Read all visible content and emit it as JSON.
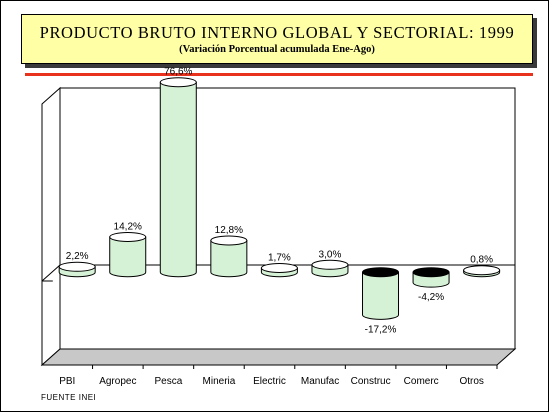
{
  "title": "PRODUCTO BRUTO INTERNO GLOBAL Y SECTORIAL: 1999",
  "subtitle": "(Variación Porcentual acumulada Ene-Ago)",
  "source": "FUENTE INEI",
  "colors": {
    "title_bg": "#ffffa6",
    "rule": "#e8321e",
    "bar_fill": "#d6f2d6",
    "bar_top": "#ffffff",
    "bar_bottom_negative": "#000000",
    "floor": "#c8c8c8"
  },
  "chart_data": {
    "type": "bar",
    "style": "3d-cylinder",
    "categories": [
      "PBI",
      "Agropec",
      "Pesca",
      "Mineria",
      "Electric",
      "Manufac",
      "Construc",
      "Comerc",
      "Otros"
    ],
    "values": [
      2.2,
      14.2,
      76.6,
      12.8,
      1.7,
      3.0,
      -17.2,
      -4.2,
      0.8
    ],
    "data_labels": [
      "2,2%",
      "14,2%",
      "76,6%",
      "12,8%",
      "1,7%",
      "3,0%",
      "-17,2%",
      "-4,2%",
      "0,8%"
    ],
    "ylim": [
      -35,
      80
    ],
    "grid": false,
    "legend": "none"
  }
}
